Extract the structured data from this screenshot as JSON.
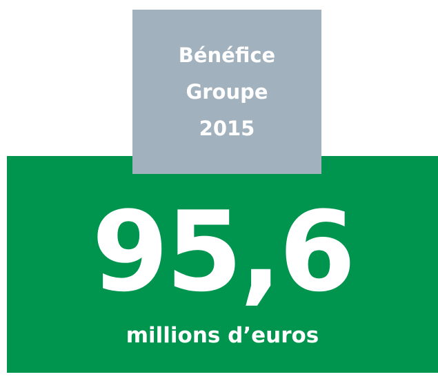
{
  "header": {
    "lines": [
      "Bénéfice",
      "Groupe",
      "2015"
    ]
  },
  "figure": {
    "value": "95,6",
    "unit": "millions d’euros"
  }
}
